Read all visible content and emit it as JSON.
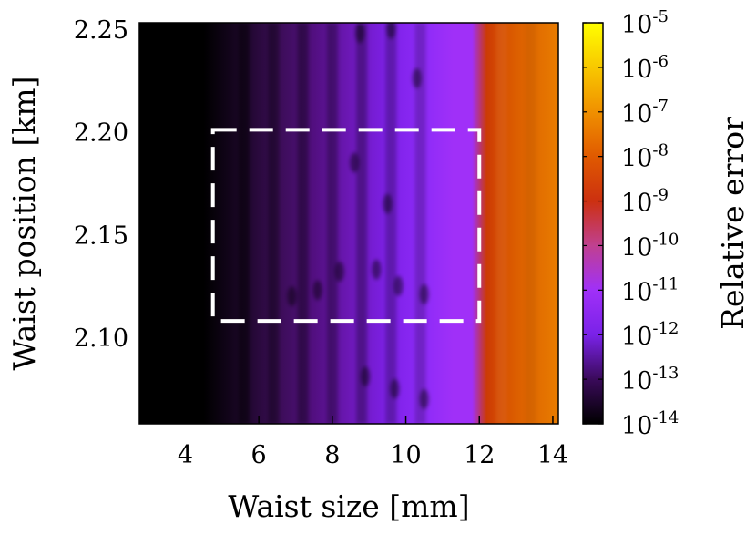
{
  "chart_data": {
    "type": "heatmap",
    "xlabel": "Waist size [mm]",
    "ylabel": "Waist position [km]",
    "colorbar_label": "Relative error",
    "xlim": [
      2.75,
      14.15
    ],
    "ylim": [
      2.058,
      2.253
    ],
    "x_ticks": [
      {
        "value": 4,
        "label": "4"
      },
      {
        "value": 6,
        "label": "6"
      },
      {
        "value": 8,
        "label": "8"
      },
      {
        "value": 10,
        "label": "10"
      },
      {
        "value": 12,
        "label": "12"
      },
      {
        "value": 14,
        "label": "14"
      }
    ],
    "y_ticks": [
      {
        "value": 2.1,
        "label": "2.10"
      },
      {
        "value": 2.15,
        "label": "2.15"
      },
      {
        "value": 2.2,
        "label": "2.20"
      },
      {
        "value": 2.25,
        "label": "2.25"
      }
    ],
    "colorbar": {
      "scale": "log",
      "range": [
        1e-14,
        1e-05
      ],
      "colormap": "gnuplot-like (black → purple → violet → red → orange → yellow)",
      "ticks": [
        {
          "base": "10",
          "exponent": "-14"
        },
        {
          "base": "10",
          "exponent": "-13"
        },
        {
          "base": "10",
          "exponent": "-12"
        },
        {
          "base": "10",
          "exponent": "-11"
        },
        {
          "base": "10",
          "exponent": "-10"
        },
        {
          "base": "10",
          "exponent": "-9"
        },
        {
          "base": "10",
          "exponent": "-8"
        },
        {
          "base": "10",
          "exponent": "-7"
        },
        {
          "base": "10",
          "exponent": "-6"
        },
        {
          "base": "10",
          "exponent": "-5"
        }
      ],
      "colors": [
        "#000000",
        "#3a0a5a",
        "#7a22e8",
        "#a030f8",
        "#c04090",
        "#cc3010",
        "#e05a00",
        "#f09000",
        "#f8c800",
        "#ffff00"
      ]
    },
    "field_profile": {
      "x_waist_mm": [
        2.75,
        4.5,
        5.5,
        6.5,
        7.5,
        8.5,
        9.5,
        10.5,
        11.3,
        11.8,
        12.2,
        12.5,
        13.0,
        14.15
      ],
      "log10_relative_error": [
        -14.2,
        -14.2,
        -13.8,
        -13.3,
        -13.0,
        -12.6,
        -12.2,
        -11.7,
        -11.4,
        -11.2,
        -8.7,
        -8.5,
        -8.3,
        -8.1
      ],
      "colors": [
        "#000000",
        "#000000",
        "#1a0626",
        "#3a0d55",
        "#520f80",
        "#6d18b8",
        "#7d20e6",
        "#8e2bf8",
        "#a030f8",
        "#a030f8",
        "#cc3a05",
        "#d44a00",
        "#dc5e00",
        "#e87c00"
      ]
    },
    "annotation": {
      "type": "dashed-rectangle",
      "color": "#ffffff",
      "x_range": [
        4.75,
        12.0
      ],
      "y_range": [
        2.108,
        2.201
      ]
    }
  }
}
